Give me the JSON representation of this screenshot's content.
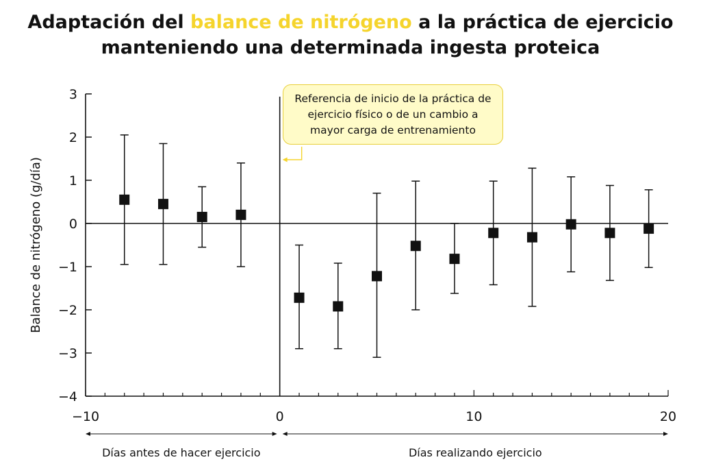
{
  "title": {
    "part1": "Adaptación del ",
    "highlight": "balance de nitrógeno",
    "part2": " a la práctica de ejercicio",
    "line2": "manteniendo una determinada ingesta proteica"
  },
  "colors": {
    "highlight": "#f5d42c",
    "annotation_fill": "#fffbc8",
    "annotation_border": "#e8cf3a",
    "marks": "#111111"
  },
  "chart_data": {
    "type": "scatter",
    "subtype": "error-bar",
    "ylabel": "Balance de nitrógeno (g/día)",
    "xlabel": "",
    "xlim": [
      -10,
      20
    ],
    "ylim": [
      -4,
      3
    ],
    "xticks": [
      -10,
      0,
      10,
      20
    ],
    "xtick_labels": [
      "−10",
      "0",
      "10",
      "20"
    ],
    "yticks": [
      -4,
      -3,
      -2,
      -1,
      0,
      1,
      2,
      3
    ],
    "ytick_labels": [
      "−4",
      "−3",
      "−2",
      "−1",
      "0",
      "1",
      "2",
      "3"
    ],
    "reference_x": 0,
    "zero_line": 0,
    "points": [
      {
        "x": -8,
        "y": 0.55,
        "lo": -0.95,
        "hi": 2.05
      },
      {
        "x": -6,
        "y": 0.45,
        "lo": -0.95,
        "hi": 1.85
      },
      {
        "x": -4,
        "y": 0.15,
        "lo": -0.55,
        "hi": 0.85
      },
      {
        "x": -2,
        "y": 0.2,
        "lo": -1.0,
        "hi": 1.4
      },
      {
        "x": 1,
        "y": -1.72,
        "lo": -2.9,
        "hi": -0.5
      },
      {
        "x": 3,
        "y": -1.92,
        "lo": -2.9,
        "hi": -0.92
      },
      {
        "x": 5,
        "y": -1.22,
        "lo": -3.1,
        "hi": 0.7
      },
      {
        "x": 7,
        "y": -0.52,
        "lo": -2.0,
        "hi": 0.98
      },
      {
        "x": 9,
        "y": -0.82,
        "lo": -1.62,
        "hi": 0
      },
      {
        "x": 11,
        "y": -0.22,
        "lo": -1.42,
        "hi": 0.98
      },
      {
        "x": 13,
        "y": -0.32,
        "lo": -1.92,
        "hi": 1.28
      },
      {
        "x": 15,
        "y": -0.02,
        "lo": -1.12,
        "hi": 1.08
      },
      {
        "x": 17,
        "y": -0.22,
        "lo": -1.32,
        "hi": 0.88
      },
      {
        "x": 19,
        "y": -0.12,
        "lo": -1.02,
        "hi": 0.78
      }
    ],
    "annotation": "Referencia de inicio de la práctica de ejercicio físico o de un cambio a mayor carga de entrenamiento",
    "ranges": [
      {
        "label": "Días antes de hacer ejercicio",
        "from": -10,
        "to": 0
      },
      {
        "label": "Días realizando ejercicio",
        "from": 0,
        "to": 20
      }
    ]
  }
}
